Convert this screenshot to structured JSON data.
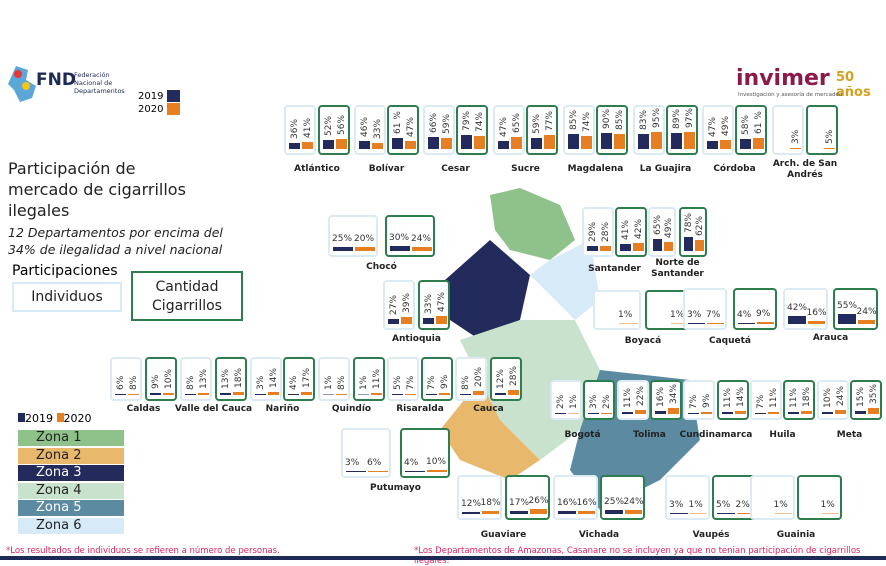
{
  "header": {
    "logo_left": "FND",
    "logo_left_sub": "Federación Nacional de Departamentos",
    "logo_right": "invimer",
    "logo_right_years": "50 años",
    "logo_right_sub": "Investigación y asesoría de mercadeo",
    "year_legend": [
      {
        "label": "2019",
        "color": "#232a5c"
      },
      {
        "label": "2020",
        "color": "#e67e22"
      }
    ]
  },
  "title": "Participación de mercado de cigarrillos ilegales",
  "subtitle": "12 Departamentos por encima del 34% de ilegalidad a nivel nacional",
  "legend": {
    "participaciones": "Participaciones",
    "individuos": "Individuos",
    "cigarrillos": "Cantidad Cigarrillos",
    "years": [
      {
        "label": "2019",
        "color": "#232a5c"
      },
      {
        "label": "2020",
        "color": "#e67e22"
      }
    ],
    "zones": [
      {
        "label": "Zona 1",
        "color": "#8fc18a"
      },
      {
        "label": "Zona 2",
        "color": "#e8b86d"
      },
      {
        "label": "Zona 3",
        "color": "#232a5c"
      },
      {
        "label": "Zona 4",
        "color": "#c9e2cd"
      },
      {
        "label": "Zona 5",
        "color": "#5b8aa1"
      },
      {
        "label": "Zona 6",
        "color": "#d6eaf7"
      }
    ]
  },
  "departments": [
    {
      "name": "Atlántico",
      "individuos": [
        "36%",
        "41%"
      ],
      "cigarrillos": [
        "52%",
        "56%"
      ]
    },
    {
      "name": "Bolívar",
      "individuos": [
        "46%",
        "33%"
      ],
      "cigarrillos": [
        "61 %",
        "47%"
      ]
    },
    {
      "name": "Cesar",
      "individuos": [
        "66%",
        "59%"
      ],
      "cigarrillos": [
        "79%",
        "74%"
      ]
    },
    {
      "name": "Sucre",
      "individuos": [
        "47%",
        "65%"
      ],
      "cigarrillos": [
        "59%",
        "77%"
      ]
    },
    {
      "name": "Magdalena",
      "individuos": [
        "85%",
        "74%"
      ],
      "cigarrillos": [
        "90%",
        "85%"
      ]
    },
    {
      "name": "La Guajira",
      "individuos": [
        "83%",
        "95%"
      ],
      "cigarrillos": [
        "89%",
        "97%"
      ]
    },
    {
      "name": "Córdoba",
      "individuos": [
        "47%",
        "49%"
      ],
      "cigarrillos": [
        "58%",
        "61 %"
      ]
    },
    {
      "name": "Arch. de San Andrés",
      "individuos": [
        "",
        "3%"
      ],
      "cigarrillos": [
        "",
        "5%"
      ]
    },
    {
      "name": "Chocó",
      "individuos": [
        "25%",
        "20%"
      ],
      "cigarrillos": [
        "30%",
        "24%"
      ]
    },
    {
      "name": "Antioquia",
      "individuos": [
        "27%",
        "39%"
      ],
      "cigarrillos": [
        "33%",
        "47%"
      ]
    },
    {
      "name": "Santander",
      "individuos": [
        "29%",
        "28%"
      ],
      "cigarrillos": [
        "41%",
        "42%"
      ]
    },
    {
      "name": "Norte de Santander",
      "individuos": [
        "65%",
        "49%"
      ],
      "cigarrillos": [
        "78%",
        "62%"
      ]
    },
    {
      "name": "Boyacá",
      "individuos": [
        "",
        "1%"
      ],
      "cigarrillos": [
        "",
        "1%"
      ]
    },
    {
      "name": "Caquetá",
      "individuos": [
        "3%",
        "7%"
      ],
      "cigarrillos": [
        "4%",
        "9%"
      ]
    },
    {
      "name": "Arauca",
      "individuos": [
        "42%",
        "16%"
      ],
      "cigarrillos": [
        "55%",
        "24%"
      ]
    },
    {
      "name": "Caldas",
      "individuos": [
        "6%",
        "8%"
      ],
      "cigarrillos": [
        "9%",
        "10%"
      ]
    },
    {
      "name": "Valle del Cauca",
      "individuos": [
        "8%",
        "13%"
      ],
      "cigarrillos": [
        "13%",
        "18%"
      ]
    },
    {
      "name": "Nariño",
      "individuos": [
        "3%",
        "14%"
      ],
      "cigarrillos": [
        "4%",
        "17%"
      ]
    },
    {
      "name": "Quindío",
      "individuos": [
        "1%",
        "8%"
      ],
      "cigarrillos": [
        "1%",
        "11%"
      ]
    },
    {
      "name": "Risaralda",
      "individuos": [
        "5%",
        "7%"
      ],
      "cigarrillos": [
        "7%",
        "9%"
      ]
    },
    {
      "name": "Cauca",
      "individuos": [
        "8%",
        "20%"
      ],
      "cigarrillos": [
        "12%",
        "28%"
      ]
    },
    {
      "name": "Bogotá",
      "individuos": [
        "2%",
        "1%"
      ],
      "cigarrillos": [
        "3%",
        "2%"
      ]
    },
    {
      "name": "Tolima",
      "individuos": [
        "11%",
        "22%"
      ],
      "cigarrillos": [
        "16%",
        "34%"
      ]
    },
    {
      "name": "Cundinamarca",
      "individuos": [
        "7%",
        "9%"
      ],
      "cigarrillos": [
        "11%",
        "14%"
      ]
    },
    {
      "name": "Huila",
      "individuos": [
        "7%",
        "11%"
      ],
      "cigarrillos": [
        "11%",
        "18%"
      ]
    },
    {
      "name": "Meta",
      "individuos": [
        "10%",
        "24%"
      ],
      "cigarrillos": [
        "15%",
        "35%"
      ]
    },
    {
      "name": "Putumayo",
      "individuos": [
        "3%",
        "6%"
      ],
      "cigarrillos": [
        "4%",
        "10%"
      ]
    },
    {
      "name": "Guaviare",
      "individuos": [
        "12%",
        "18%"
      ],
      "cigarrillos": [
        "17%",
        "26%"
      ]
    },
    {
      "name": "Vichada",
      "individuos": [
        "16%",
        "16%"
      ],
      "cigarrillos": [
        "25%",
        "24%"
      ]
    },
    {
      "name": "Vaupés",
      "individuos": [
        "3%",
        "1%"
      ],
      "cigarrillos": [
        "5%",
        "2%"
      ]
    },
    {
      "name": "Guainia",
      "individuos": [
        "",
        "1%"
      ],
      "cigarrillos": [
        "",
        "1%"
      ]
    }
  ],
  "footnotes": {
    "left": "*Los resultados de individuos se refieren a número de personas.",
    "right": "*Los Departamentos de Amazonas, Casanare no se incluyen ya que no tenian participación de cigarrillos ilegales."
  }
}
